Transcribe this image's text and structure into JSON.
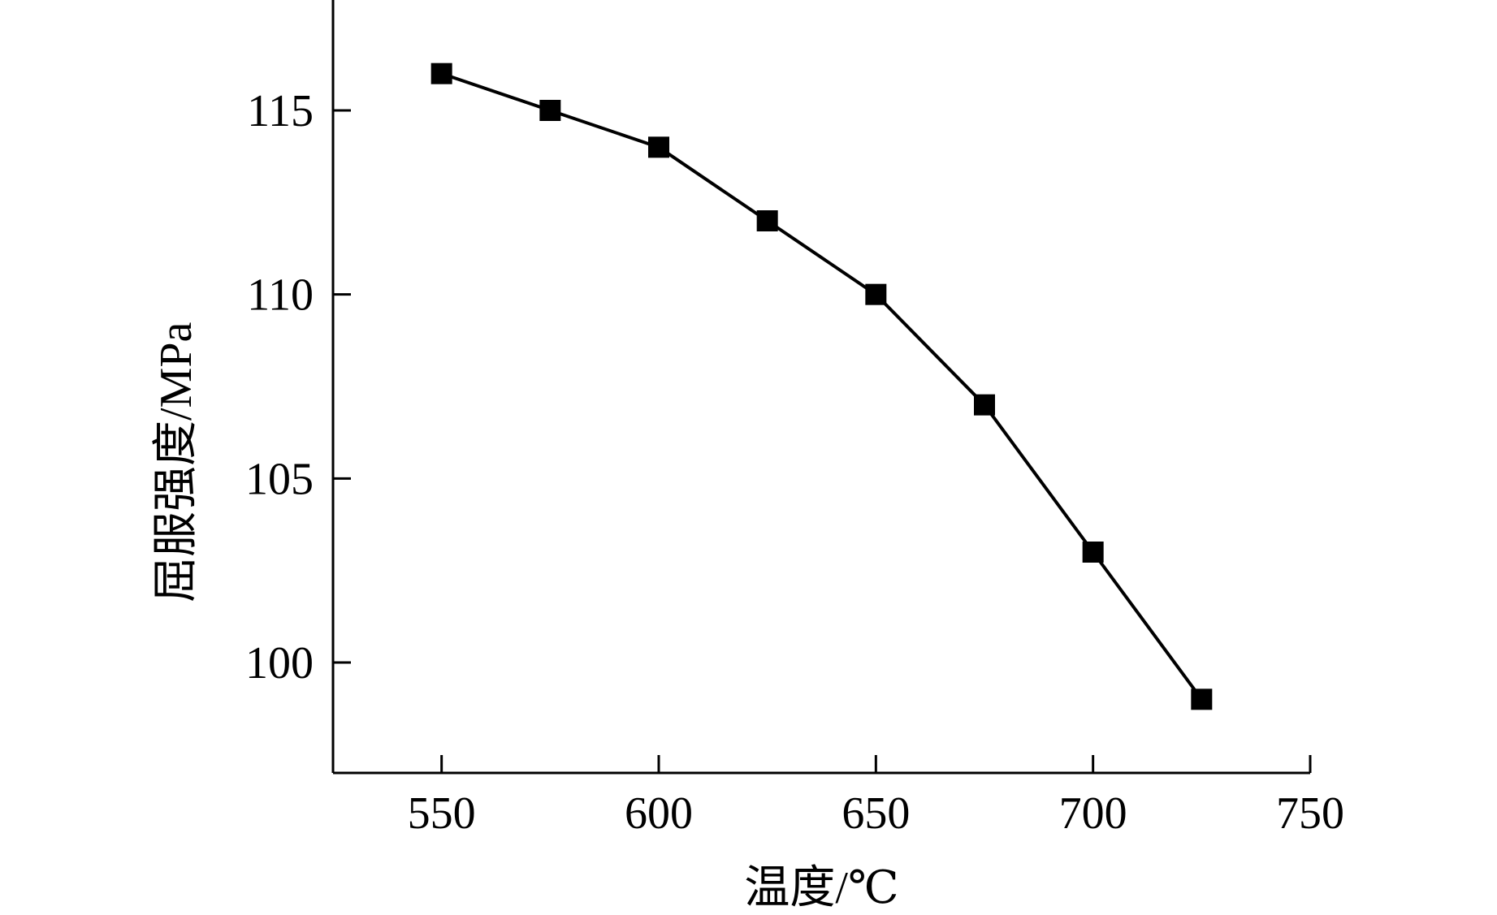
{
  "chart_data": {
    "type": "line",
    "title": "",
    "xlabel": "温度/℃",
    "ylabel": "屈服强度/MPa",
    "xlim": [
      525,
      750
    ],
    "ylim": [
      97,
      118
    ],
    "x_ticks": [
      550,
      600,
      650,
      700,
      750
    ],
    "y_ticks": [
      100,
      105,
      110,
      115
    ],
    "grid": false,
    "legend": "none",
    "marker": "square",
    "line_color": "#000000",
    "series": [
      {
        "x": [
          550,
          575,
          600,
          625,
          650,
          675,
          700,
          725
        ],
        "y": [
          116,
          115,
          114,
          112,
          110,
          107,
          103,
          99
        ]
      }
    ]
  }
}
